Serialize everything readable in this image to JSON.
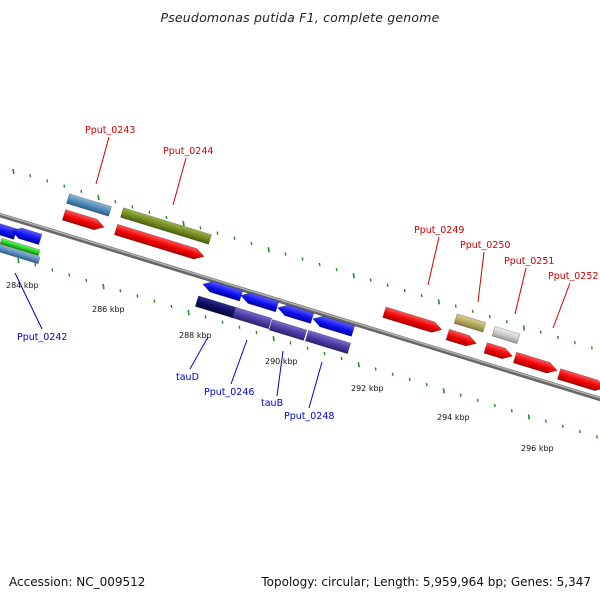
{
  "title": "Pseudomonas putida F1, complete genome",
  "footer": {
    "accession": "Accession: NC_009512",
    "summary": "Topology: circular; Length: 5,959,964 bp; Genes: 5,347"
  },
  "ticks": {
    "labels": [
      "284 kbp",
      "286 kbp",
      "288 kbp",
      "290 kbp",
      "292 kbp",
      "294 kbp",
      "296 kbp"
    ]
  },
  "genes": {
    "forward_labels": [
      "Pput_0243",
      "Pput_0244",
      "Pput_0249",
      "Pput_0250",
      "Pput_0251",
      "Pput_0252"
    ],
    "reverse_labels": [
      "Pput_0242",
      "tauD",
      "Pput_0246",
      "tauB",
      "Pput_0248"
    ]
  },
  "colors": {
    "forward_label": "#cc0000",
    "reverse_label": "#0000cc",
    "tick_mark": "#228b22",
    "backbone": "#8a8a8a"
  }
}
